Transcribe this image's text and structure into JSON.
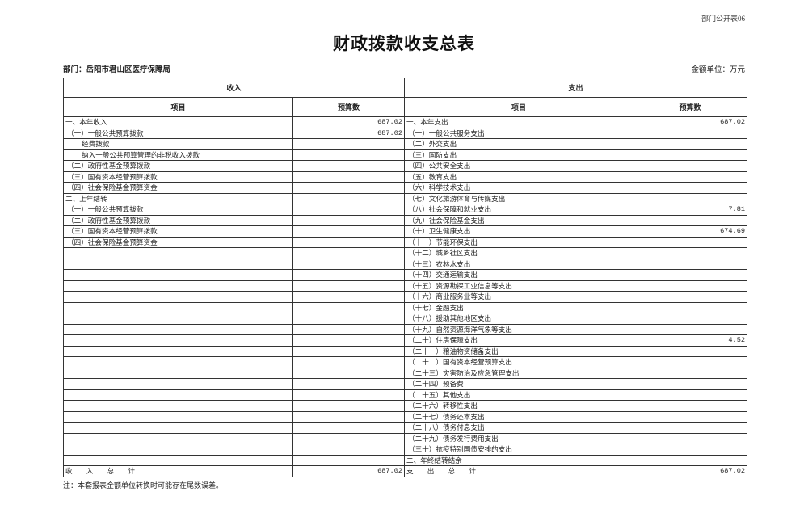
{
  "header": {
    "form_code": "部门公开表06",
    "title": "财政拨款收支总表",
    "department": "部门：岳阳市君山区医疗保障局",
    "unit": "金额单位：万元"
  },
  "table": {
    "income_header": "收入",
    "expense_header": "支出",
    "col_item": "项目",
    "col_amount": "预算数",
    "income_rows": [
      {
        "item": "一、本年收入",
        "amount": "687.02"
      },
      {
        "item": "（一）一般公共预算拨款",
        "amount": "687.02"
      },
      {
        "item": "经费拨款",
        "amount": ""
      },
      {
        "item": "纳入一般公共预算管理的非税收入拨款",
        "amount": ""
      },
      {
        "item": "（二）政府性基金预算拨款",
        "amount": ""
      },
      {
        "item": "（三）国有资本经营预算拨款",
        "amount": ""
      },
      {
        "item": "（四）社会保险基金预算资金",
        "amount": ""
      },
      {
        "item": "二、上年结转",
        "amount": ""
      },
      {
        "item": "（一）一般公共预算拨款",
        "amount": ""
      },
      {
        "item": "（二）政府性基金预算拨款",
        "amount": ""
      },
      {
        "item": "（三）国有资本经营预算拨款",
        "amount": ""
      },
      {
        "item": "（四）社会保险基金预算资金",
        "amount": ""
      }
    ],
    "expense_rows": [
      {
        "item": "一、本年支出",
        "amount": "687.02"
      },
      {
        "item": "（一）一般公共服务支出",
        "amount": ""
      },
      {
        "item": "（二）外交支出",
        "amount": ""
      },
      {
        "item": "（三）国防支出",
        "amount": ""
      },
      {
        "item": "（四）公共安全支出",
        "amount": ""
      },
      {
        "item": "（五）教育支出",
        "amount": ""
      },
      {
        "item": "（六）科学技术支出",
        "amount": ""
      },
      {
        "item": "（七）文化旅游体育与传媒支出",
        "amount": ""
      },
      {
        "item": "（八）社会保障和就业支出",
        "amount": "7.81"
      },
      {
        "item": "（九）社会保险基金支出",
        "amount": ""
      },
      {
        "item": "（十）卫生健康支出",
        "amount": "674.69"
      },
      {
        "item": "（十一）节能环保支出",
        "amount": ""
      },
      {
        "item": "（十二）城乡社区支出",
        "amount": ""
      },
      {
        "item": "（十三）农林水支出",
        "amount": ""
      },
      {
        "item": "（十四）交通运输支出",
        "amount": ""
      },
      {
        "item": "（十五）资源勘探工业信息等支出",
        "amount": ""
      },
      {
        "item": "（十六）商业服务业等支出",
        "amount": ""
      },
      {
        "item": "（十七）金融支出",
        "amount": ""
      },
      {
        "item": "（十八）援助其他地区支出",
        "amount": ""
      },
      {
        "item": "（十九）自然资源海洋气象等支出",
        "amount": ""
      },
      {
        "item": "（二十）住房保障支出",
        "amount": "4.52"
      },
      {
        "item": "（二十一）粮油物资储备支出",
        "amount": ""
      },
      {
        "item": "（二十二）国有资本经营预算支出",
        "amount": ""
      },
      {
        "item": "（二十三）灾害防治及应急管理支出",
        "amount": ""
      },
      {
        "item": "（二十四）预备费",
        "amount": ""
      },
      {
        "item": "（二十五）其他支出",
        "amount": ""
      },
      {
        "item": "（二十六）转移性支出",
        "amount": ""
      },
      {
        "item": "（二十七）债务还本支出",
        "amount": ""
      },
      {
        "item": "（二十八）债务付息支出",
        "amount": ""
      },
      {
        "item": "（二十九）债务发行费用支出",
        "amount": ""
      },
      {
        "item": "（三十）抗疫特别国债安排的支出",
        "amount": ""
      },
      {
        "item": "二、年终结转结余",
        "amount": ""
      }
    ],
    "income_total_label": "收　　入　　总　　计",
    "income_total": "687.02",
    "expense_total_label": "支　　出　　总　　计",
    "expense_total": "687.02"
  },
  "note": "注：本套报表金额单位转换时可能存在尾数误差。"
}
